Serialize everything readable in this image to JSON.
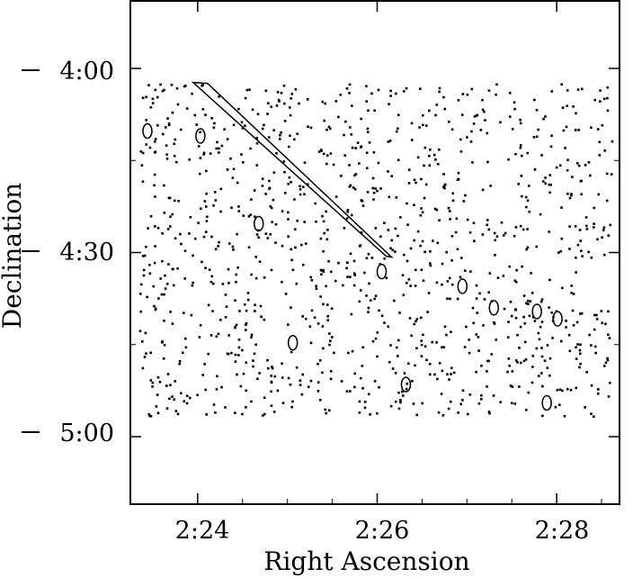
{
  "chart_data": {
    "type": "scatter",
    "title": "",
    "xlabel": "Right Ascension",
    "ylabel": "Declination",
    "x_ticks": [
      {
        "value": 24,
        "label": "2:24"
      },
      {
        "value": 26,
        "label": "2:26"
      },
      {
        "value": 28,
        "label": "2:28"
      }
    ],
    "y_ticks": [
      {
        "value": 0,
        "label": "4:00"
      },
      {
        "value": 30,
        "label": "4:30"
      },
      {
        "value": 60,
        "label": "5:00"
      }
    ],
    "xlim": [
      23.25,
      28.7
    ],
    "ylim": [
      -11,
      71
    ],
    "y_inverted": true,
    "point_color": "#000000",
    "points": [],
    "regions": [
      {
        "shape": "streak",
        "x1": 23.95,
        "y1": 2.3,
        "x2": 26.12,
        "y2": 30.3
      },
      {
        "shape": "ellipse",
        "x": 23.44,
        "y": 10.2
      },
      {
        "shape": "ellipse",
        "x": 24.03,
        "y": 11.0
      },
      {
        "shape": "ellipse",
        "x": 24.68,
        "y": 25.3
      },
      {
        "shape": "ellipse",
        "x": 26.05,
        "y": 33.1
      },
      {
        "shape": "ellipse",
        "x": 26.95,
        "y": 35.5
      },
      {
        "shape": "ellipse",
        "x": 27.3,
        "y": 39.0
      },
      {
        "shape": "ellipse",
        "x": 27.78,
        "y": 39.6
      },
      {
        "shape": "ellipse",
        "x": 28.01,
        "y": 40.8
      },
      {
        "shape": "ellipse",
        "x": 25.06,
        "y": 44.7
      },
      {
        "shape": "ellipse",
        "x": 27.89,
        "y": 54.5
      },
      {
        "shape": "ellipse",
        "x": 26.32,
        "y": 51.5
      }
    ]
  }
}
